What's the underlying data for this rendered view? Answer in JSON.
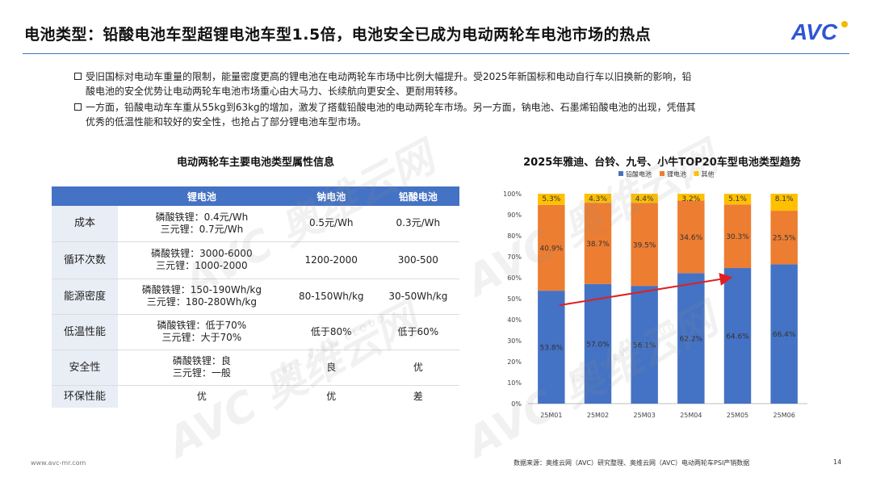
{
  "header": {
    "title": "电池类型：铅酸电池车型超锂电池车型1.5倍，电池安全已成为电动两轮车电池市场的热点",
    "logo_text": "AVC",
    "accent_color": "#4472c4"
  },
  "bullets": [
    {
      "line1": "受旧国标对电动车重量的限制，能量密度更高的锂电池在电动两轮车市场中比例大幅提升。受2025年新国标和电动自行车以旧换新的影响，铅",
      "line2": "酸电池的安全优势让电动两轮车电池市场重心由大马力、长续航向更安全、更耐用转移。"
    },
    {
      "line1": "一方面，铅酸电动车车重从55kg到63kg的增加，激发了搭载铅酸电池的电动两轮车市场。另一方面，钠电池、石墨烯铅酸电池的出现，凭借其",
      "line2": "优秀的低温性能和较好的安全性，也抢占了部分锂电池车型市场。"
    }
  ],
  "table": {
    "title": "电动两轮车主要电池类型属性信息",
    "headers": [
      "锂电池",
      "钠电池",
      "铅酸电池"
    ],
    "rows": [
      {
        "label": "成本",
        "lithium": [
          "磷酸铁锂：0.4元/Wh",
          "三元锂：0.7元/Wh"
        ],
        "sodium": "0.5元/Wh",
        "lead": "0.3元/Wh"
      },
      {
        "label": "循环次数",
        "lithium": [
          "磷酸铁锂：3000-6000",
          "三元锂：1000-2000"
        ],
        "sodium": "1200-2000",
        "lead": "300-500"
      },
      {
        "label": "能源密度",
        "lithium": [
          "磷酸铁锂：150-190Wh/kg",
          "三元锂：180-280Wh/kg"
        ],
        "sodium": "80-150Wh/kg",
        "lead": "30-50Wh/kg"
      },
      {
        "label": "低温性能",
        "lithium": [
          "磷酸铁锂：低于70%",
          "三元锂：大于70%"
        ],
        "sodium": "低于80%",
        "lead": "低于60%"
      },
      {
        "label": "安全性",
        "lithium": [
          "磷酸铁锂：良",
          "三元锂：一般"
        ],
        "sodium": "良",
        "lead": "优"
      },
      {
        "label": "环保性能",
        "lithium": [
          "优"
        ],
        "sodium": "优",
        "lead": "差"
      }
    ]
  },
  "chart_data": {
    "type": "bar",
    "stacked": true,
    "title": "2025年雅迪、台铃、九号、小牛TOP20车型电池类型趋势",
    "categories": [
      "25M01",
      "25M02",
      "25M03",
      "25M04",
      "25M05",
      "25M06"
    ],
    "series": [
      {
        "name": "铅酸电池",
        "color": "#4472c4",
        "values": [
          53.8,
          57.0,
          56.1,
          62.2,
          64.6,
          66.4
        ],
        "labels": [
          "53.8%",
          "57.0%",
          "56.1%",
          "62.2%",
          "64.6%",
          "66.4%"
        ]
      },
      {
        "name": "锂电池",
        "color": "#ed7d31",
        "values": [
          40.9,
          38.7,
          39.5,
          34.6,
          30.3,
          25.5
        ],
        "labels": [
          "40.9%",
          "38.7%",
          "39.5%",
          "34.6%",
          "30.3%",
          "25.5%"
        ]
      },
      {
        "name": "其他",
        "color": "#ffc000",
        "values": [
          5.3,
          4.3,
          4.4,
          3.2,
          5.1,
          8.1
        ],
        "labels": [
          "5.3%",
          "4.3%",
          "4.4%",
          "3.2%",
          "5.1%",
          "8.1%"
        ]
      }
    ],
    "ylim": [
      0,
      100
    ],
    "y_ticks": [
      "0%",
      "10%",
      "20%",
      "30%",
      "40%",
      "50%",
      "60%",
      "70%",
      "80%",
      "90%",
      "100%"
    ],
    "legend_position": "top",
    "gridlines": false,
    "trend_arrow_color": "#e02020"
  },
  "watermark": {
    "brand_cn": "奥维云网",
    "brand_en": "ALL VIEW CLOUD",
    "brand_logo": "AVC"
  },
  "footer": {
    "url": "www.avc-mr.com",
    "source": "数据来源：奥维云网（AVC）研究整理、奥维云网（AVC）电动两轮车PSI产销数据",
    "page": "14"
  }
}
